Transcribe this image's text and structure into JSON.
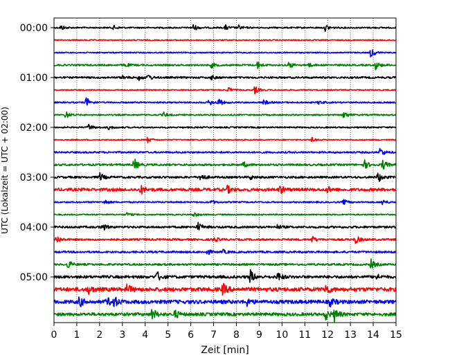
{
  "chart_data": {
    "type": "line",
    "title": "",
    "xlabel": "Zeit  [min]",
    "ylabel": "UTC (Lokalzeit = UTC + 02:00)",
    "xlim": [
      0,
      15
    ],
    "x_ticks": [
      "0",
      "1",
      "2",
      "3",
      "4",
      "5",
      "6",
      "7",
      "8",
      "9",
      "10",
      "11",
      "12",
      "13",
      "14",
      "15"
    ],
    "y_tick_labels": [
      "00:00",
      "01:00",
      "02:00",
      "03:00",
      "04:00",
      "05:00"
    ],
    "grid": "vertical dotted lines at each minute",
    "trace_interval_minutes": 15,
    "colors": [
      "#000000",
      "#ff0000",
      "#0000ff",
      "#008000"
    ],
    "traces": [
      {
        "start": "00:00",
        "color": "#000000",
        "noise": 1.0,
        "events": [
          [
            0.3,
            4
          ],
          [
            2.6,
            3
          ],
          [
            6.1,
            5
          ],
          [
            7.5,
            4
          ],
          [
            8.1,
            3
          ],
          [
            11.9,
            5
          ]
        ]
      },
      {
        "start": "00:15",
        "color": "#ff0000",
        "noise": 0.8,
        "events": []
      },
      {
        "start": "00:30",
        "color": "#0000ff",
        "noise": 0.8,
        "events": [
          [
            13.9,
            8
          ]
        ]
      },
      {
        "start": "00:45",
        "color": "#008000",
        "noise": 1.2,
        "events": [
          [
            3.1,
            3
          ],
          [
            6.9,
            4
          ],
          [
            8.9,
            6
          ],
          [
            10.3,
            5
          ],
          [
            11.1,
            4
          ],
          [
            14.1,
            6
          ]
        ]
      },
      {
        "start": "01:00",
        "color": "#000000",
        "noise": 1.3,
        "events": [
          [
            3.0,
            3
          ],
          [
            3.7,
            4
          ],
          [
            4.1,
            5
          ],
          [
            6.9,
            3
          ]
        ]
      },
      {
        "start": "01:15",
        "color": "#ff0000",
        "noise": 0.8,
        "events": [
          [
            7.6,
            5
          ],
          [
            8.8,
            6
          ]
        ]
      },
      {
        "start": "01:30",
        "color": "#0000ff",
        "noise": 1.0,
        "events": [
          [
            1.4,
            8
          ],
          [
            6.8,
            5
          ],
          [
            7.2,
            6
          ],
          [
            9.2,
            4
          ],
          [
            11.6,
            3
          ]
        ]
      },
      {
        "start": "01:45",
        "color": "#008000",
        "noise": 1.0,
        "events": [
          [
            0.5,
            6
          ],
          [
            4.8,
            4
          ],
          [
            12.7,
            6
          ]
        ]
      },
      {
        "start": "02:00",
        "color": "#000000",
        "noise": 1.0,
        "events": [
          [
            1.5,
            5
          ],
          [
            2.4,
            3
          ]
        ]
      },
      {
        "start": "02:15",
        "color": "#ff0000",
        "noise": 0.8,
        "events": [
          [
            4.1,
            4
          ],
          [
            11.3,
            3
          ]
        ]
      },
      {
        "start": "02:30",
        "color": "#0000ff",
        "noise": 1.2,
        "events": [
          [
            14.3,
            7
          ]
        ]
      },
      {
        "start": "02:45",
        "color": "#008000",
        "noise": 1.4,
        "events": [
          [
            3.5,
            10
          ],
          [
            8.3,
            4
          ],
          [
            13.6,
            7
          ],
          [
            14.4,
            8
          ]
        ]
      },
      {
        "start": "03:00",
        "color": "#000000",
        "noise": 1.5,
        "events": [
          [
            2.0,
            6
          ],
          [
            6.4,
            7
          ],
          [
            8.6,
            3
          ],
          [
            14.2,
            8
          ]
        ]
      },
      {
        "start": "03:15",
        "color": "#ff0000",
        "noise": 2.2,
        "events": [
          [
            3.8,
            6
          ],
          [
            7.6,
            5
          ],
          [
            9.9,
            6
          ],
          [
            12.0,
            4
          ]
        ]
      },
      {
        "start": "03:30",
        "color": "#0000ff",
        "noise": 1.0,
        "events": [
          [
            2.2,
            4
          ],
          [
            6.9,
            3
          ],
          [
            12.7,
            4
          ],
          [
            14.4,
            4
          ]
        ]
      },
      {
        "start": "03:45",
        "color": "#008000",
        "noise": 0.9,
        "events": [
          [
            3.2,
            3
          ],
          [
            6.1,
            4
          ]
        ]
      },
      {
        "start": "04:00",
        "color": "#000000",
        "noise": 1.5,
        "events": [
          [
            2.1,
            6
          ],
          [
            6.3,
            7
          ],
          [
            9.8,
            3
          ]
        ]
      },
      {
        "start": "04:15",
        "color": "#ff0000",
        "noise": 1.4,
        "events": [
          [
            0.1,
            6
          ],
          [
            7.0,
            4
          ],
          [
            11.3,
            5
          ],
          [
            13.2,
            7
          ]
        ]
      },
      {
        "start": "04:30",
        "color": "#0000ff",
        "noise": 1.4,
        "events": [
          [
            6.7,
            4
          ],
          [
            7.4,
            3
          ]
        ]
      },
      {
        "start": "04:45",
        "color": "#008000",
        "noise": 1.4,
        "events": [
          [
            0.6,
            6
          ],
          [
            13.9,
            7
          ]
        ]
      },
      {
        "start": "05:00",
        "color": "#000000",
        "noise": 2.0,
        "events": [
          [
            4.5,
            8
          ],
          [
            8.6,
            10
          ],
          [
            9.8,
            7
          ],
          [
            14.1,
            5
          ]
        ]
      },
      {
        "start": "05:15",
        "color": "#ff0000",
        "noise": 2.8,
        "events": [
          [
            1.5,
            6
          ],
          [
            3.2,
            7
          ],
          [
            7.4,
            8
          ],
          [
            11.9,
            8
          ]
        ]
      },
      {
        "start": "05:30",
        "color": "#0000ff",
        "noise": 2.6,
        "events": [
          [
            1.1,
            8
          ],
          [
            2.3,
            6
          ],
          [
            2.6,
            9
          ],
          [
            8.4,
            7
          ],
          [
            12.1,
            6
          ]
        ]
      },
      {
        "start": "05:45",
        "color": "#008000",
        "noise": 2.2,
        "events": [
          [
            4.3,
            9
          ],
          [
            5.3,
            6
          ],
          [
            11.9,
            8
          ],
          [
            12.3,
            9
          ]
        ]
      }
    ]
  }
}
